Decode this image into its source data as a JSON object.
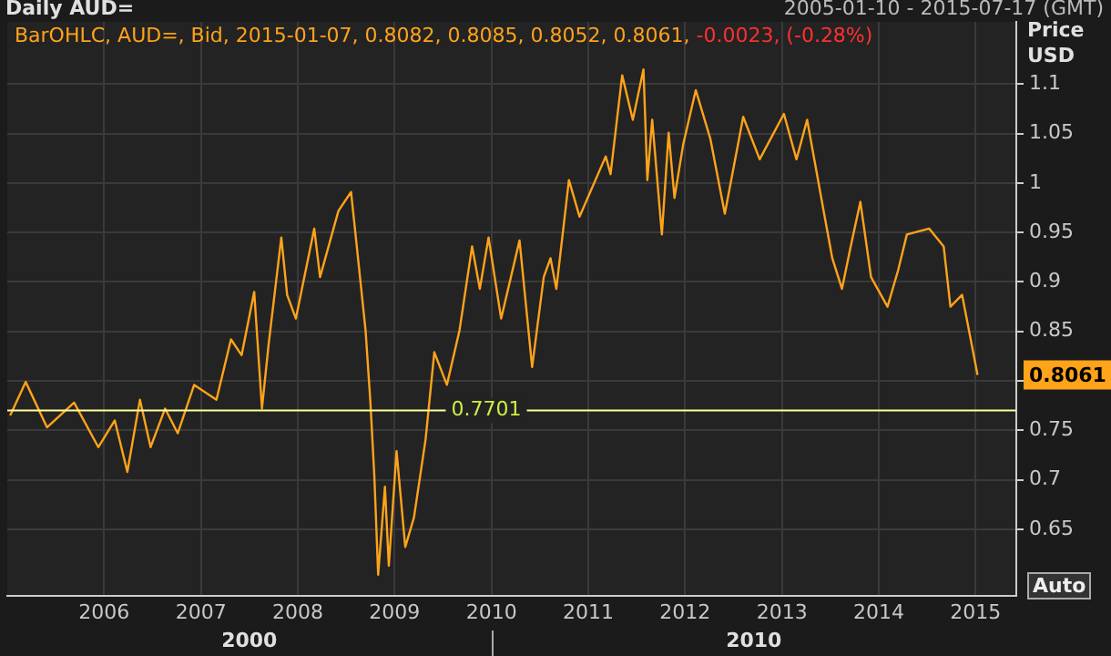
{
  "chart_data": {
    "type": "line",
    "title": "Daily AUD=",
    "subtitle": "2005-01-10 - 2015-07-17 (GMT)",
    "ylabel": "Price USD",
    "annotations": [
      "BarOHLC, AUD=, Bid, 2015-01-07, 0.8082, 0.8085, 0.8052, 0.8061,",
      "-0.0023, (-0.28%)",
      "0.8061",
      "Auto",
      "2000",
      "2010"
    ],
    "xlim": [
      2005.0,
      2015.42
    ],
    "xticks": [
      2006,
      2007,
      2008,
      2009,
      2010,
      2011,
      2012,
      2013,
      2014,
      2015
    ],
    "ylim": [
      0.583,
      1.163
    ],
    "yticks": [
      0.65,
      0.7,
      0.75,
      {
        "value": 0.8,
        "label": null
      },
      0.85,
      0.9,
      0.95,
      1,
      1.05,
      1.1
    ],
    "grid": true,
    "legend": false,
    "ref_lines": [
      {
        "axis": "y",
        "value": 0.7701,
        "label": "0.7701",
        "color": "#ffff99"
      }
    ],
    "series": [
      {
        "color": "#ffa31a",
        "x": [
          2005.03,
          2005.19,
          2005.41,
          2005.69,
          2005.94,
          2006.11,
          2006.24,
          2006.37,
          2006.48,
          2006.63,
          2006.76,
          2006.93,
          2007.16,
          2007.31,
          2007.42,
          2007.55,
          2007.63,
          2007.7,
          2007.83,
          2007.89,
          2007.98,
          2008.17,
          2008.23,
          2008.42,
          2008.55,
          2008.59,
          2008.7,
          2008.75,
          2008.79,
          2008.83,
          2008.9,
          2008.94,
          2009.02,
          2009.11,
          2009.2,
          2009.32,
          2009.41,
          2009.54,
          2009.67,
          2009.8,
          2009.88,
          2009.97,
          2010.1,
          2010.29,
          2010.42,
          2010.54,
          2010.61,
          2010.67,
          2010.8,
          2010.91,
          2011.18,
          2011.23,
          2011.35,
          2011.46,
          2011.57,
          2011.61,
          2011.66,
          2011.76,
          2011.83,
          2011.89,
          2011.98,
          2012.11,
          2012.26,
          2012.41,
          2012.6,
          2012.77,
          2013.02,
          2013.15,
          2013.26,
          2013.43,
          2013.52,
          2013.62,
          2013.71,
          2013.81,
          2013.92,
          2014.09,
          2014.2,
          2014.29,
          2014.52,
          2014.67,
          2014.74,
          2014.86,
          2015.02
        ],
        "values": [
          0.765,
          0.799,
          0.753,
          0.778,
          0.733,
          0.76,
          0.708,
          0.781,
          0.733,
          0.772,
          0.747,
          0.796,
          0.781,
          0.842,
          0.826,
          0.89,
          0.772,
          0.838,
          0.945,
          0.887,
          0.863,
          0.954,
          0.905,
          0.972,
          0.991,
          0.954,
          0.851,
          0.778,
          0.705,
          0.604,
          0.693,
          0.613,
          0.729,
          0.632,
          0.662,
          0.741,
          0.829,
          0.796,
          0.851,
          0.936,
          0.893,
          0.945,
          0.863,
          0.942,
          0.814,
          0.905,
          0.924,
          0.893,
          1.003,
          0.966,
          1.027,
          1.009,
          1.109,
          1.064,
          1.115,
          1.003,
          1.064,
          0.948,
          1.051,
          0.985,
          1.039,
          1.094,
          1.045,
          0.969,
          1.067,
          1.024,
          1.07,
          1.024,
          1.064,
          0.972,
          0.924,
          0.893,
          0.936,
          0.981,
          0.905,
          0.875,
          0.912,
          0.948,
          0.954,
          0.936,
          0.875,
          0.887,
          0.8061
        ]
      }
    ]
  }
}
